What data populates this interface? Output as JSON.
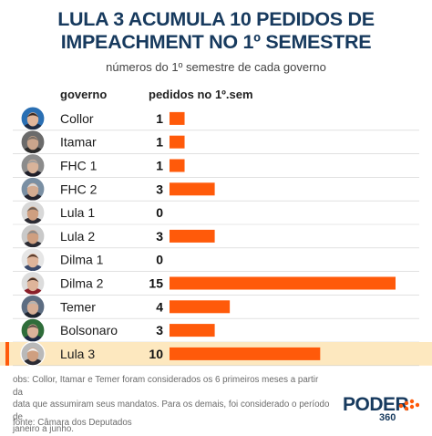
{
  "header": {
    "title_line1": "LULA 3 ACUMULA 10 PEDIDOS DE",
    "title_line2": "IMPEACHMENT NO 1º SEMESTRE",
    "subtitle": "números do 1º semestre de cada governo"
  },
  "columns": {
    "government": "governo",
    "requests": "pedidos no 1º.sem"
  },
  "colors": {
    "bar": "#ff5a0a",
    "highlight_row": "#fde8bf",
    "highlight_marker": "#ff5a0a",
    "title": "#173a5e",
    "grid": "#cfcfcf"
  },
  "chart_data": {
    "type": "bar",
    "orientation": "horizontal",
    "title": "LULA 3 ACUMULA 10 PEDIDOS DE IMPEACHMENT NO 1º SEMESTRE",
    "subtitle": "números do 1º semestre de cada governo",
    "xlabel": "pedidos no 1º.sem",
    "ylabel": "governo",
    "categories": [
      "Collor",
      "Itamar",
      "FHC 1",
      "FHC 2",
      "Lula 1",
      "Lula 2",
      "Dilma 1",
      "Dilma 2",
      "Temer",
      "Bolsonaro",
      "Lula 3"
    ],
    "values": [
      1,
      1,
      1,
      3,
      0,
      3,
      0,
      15,
      4,
      3,
      10
    ],
    "highlight": "Lula 3",
    "xlim": [
      0,
      15
    ],
    "grid": false,
    "legend": "none"
  },
  "portraits": [
    {
      "label": "Collor",
      "icon": "portrait-collor-icon",
      "skin": "#e0b59a",
      "hair": "#3a2a22",
      "bg": "#2a6fb3",
      "suit": "#1d2b44"
    },
    {
      "label": "Itamar",
      "icon": "portrait-itamar-icon",
      "skin": "#caa58c",
      "hair": "#7a6f66",
      "bg": "#6b6b6b",
      "suit": "#2b2b2b"
    },
    {
      "label": "FHC 1",
      "icon": "portrait-fhc1-icon",
      "skin": "#d8b39a",
      "hair": "#9e9e9e",
      "bg": "#8c8c8c",
      "suit": "#1f1f2a"
    },
    {
      "label": "FHC 2",
      "icon": "portrait-fhc2-icon",
      "skin": "#d3ab91",
      "hair": "#d9d9d9",
      "bg": "#7a8fa3",
      "suit": "#23232e"
    },
    {
      "label": "Lula 1",
      "icon": "portrait-lula1-icon",
      "skin": "#cf9f80",
      "hair": "#6b5c52",
      "bg": "#d8d8d8",
      "suit": "#2b2b33"
    },
    {
      "label": "Lula 2",
      "icon": "portrait-lula2-icon",
      "skin": "#cf9f80",
      "hair": "#8a8a8a",
      "bg": "#c9c9c9",
      "suit": "#2b2b33"
    },
    {
      "label": "Dilma 1",
      "icon": "portrait-dilma1-icon",
      "skin": "#deb49a",
      "hair": "#5a3c2c",
      "bg": "#e6e6e6",
      "suit": "#3b4a6b"
    },
    {
      "label": "Dilma 2",
      "icon": "portrait-dilma2-icon",
      "skin": "#deb49a",
      "hair": "#4a3226",
      "bg": "#dcdcdc",
      "suit": "#8a1f2a"
    },
    {
      "label": "Temer",
      "icon": "portrait-temer-icon",
      "skin": "#d6ae96",
      "hair": "#b3b3b3",
      "bg": "#5d6d82",
      "suit": "#1e2430"
    },
    {
      "label": "Bolsonaro",
      "icon": "portrait-bolsonaro-icon",
      "skin": "#dcb29a",
      "hair": "#5b4e46",
      "bg": "#2f6d3a",
      "suit": "#1e2a44"
    },
    {
      "label": "Lula 3",
      "icon": "portrait-lula3-icon",
      "skin": "#cf9f80",
      "hair": "#f0f0f0",
      "bg": "#b9b9b9",
      "suit": "#2b2b33"
    }
  ],
  "footer": {
    "note_line1": "obs: Collor, Itamar e Temer foram considerados os 6 primeiros meses a partir da",
    "note_line2": "data que assumiram seus mandatos. Para os demais, foi considerado o período de",
    "note_line3": "janeiro a junho.",
    "source": "fonte: Câmara dos Deputados"
  },
  "logo": {
    "main": "PODER",
    "sub": "360",
    "icon": "poder360-logo-icon"
  }
}
